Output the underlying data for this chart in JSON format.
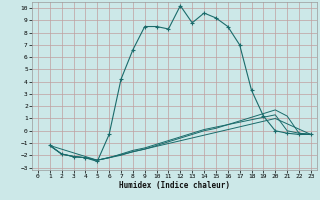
{
  "xlabel": "Humidex (Indice chaleur)",
  "bg_color": "#cce8e8",
  "grid_color": "#c0a0a0",
  "line_color": "#1a6b6b",
  "xlim": [
    -0.5,
    23.5
  ],
  "ylim": [
    -3.2,
    10.5
  ],
  "xticks": [
    0,
    1,
    2,
    3,
    4,
    5,
    6,
    7,
    8,
    9,
    10,
    11,
    12,
    13,
    14,
    15,
    16,
    17,
    18,
    19,
    20,
    21,
    22,
    23
  ],
  "yticks": [
    -3,
    -2,
    -1,
    0,
    1,
    2,
    3,
    4,
    5,
    6,
    7,
    8,
    9,
    10
  ],
  "series0_x": [
    1,
    2,
    3,
    4,
    5,
    6,
    7,
    8,
    9,
    10,
    11,
    12,
    13,
    14,
    15,
    16,
    17,
    18,
    19,
    20,
    21,
    22,
    23
  ],
  "series0_y": [
    -1.2,
    -1.9,
    -2.1,
    -2.2,
    -2.5,
    -0.3,
    4.2,
    6.6,
    8.5,
    8.5,
    8.3,
    10.2,
    8.8,
    9.6,
    9.2,
    8.5,
    7.0,
    3.3,
    1.2,
    0.0,
    -0.2,
    -0.3,
    -0.3
  ],
  "series1_x": [
    1,
    2,
    3,
    4,
    5,
    6,
    7,
    8,
    9,
    10,
    11,
    12,
    13,
    14,
    15,
    16,
    17,
    18,
    19,
    20,
    21,
    22,
    23
  ],
  "series1_y": [
    -1.2,
    -1.9,
    -2.1,
    -2.2,
    -2.4,
    -2.2,
    -2.0,
    -1.7,
    -1.5,
    -1.2,
    -0.9,
    -0.6,
    -0.3,
    0.0,
    0.2,
    0.5,
    0.8,
    1.1,
    1.4,
    1.7,
    1.2,
    -0.2,
    -0.3
  ],
  "series2_x": [
    1,
    2,
    3,
    4,
    5,
    6,
    7,
    8,
    9,
    10,
    11,
    12,
    13,
    14,
    15,
    16,
    17,
    18,
    19,
    20,
    21,
    22,
    23
  ],
  "series2_y": [
    -1.2,
    -1.9,
    -2.1,
    -2.2,
    -2.4,
    -2.2,
    -1.9,
    -1.6,
    -1.4,
    -1.1,
    -0.8,
    -0.5,
    -0.2,
    0.1,
    0.3,
    0.5,
    0.7,
    0.9,
    1.1,
    1.3,
    0.0,
    -0.2,
    -0.3
  ],
  "series3_x": [
    1,
    5,
    20,
    23
  ],
  "series3_y": [
    -1.2,
    -2.4,
    1.0,
    -0.3
  ]
}
